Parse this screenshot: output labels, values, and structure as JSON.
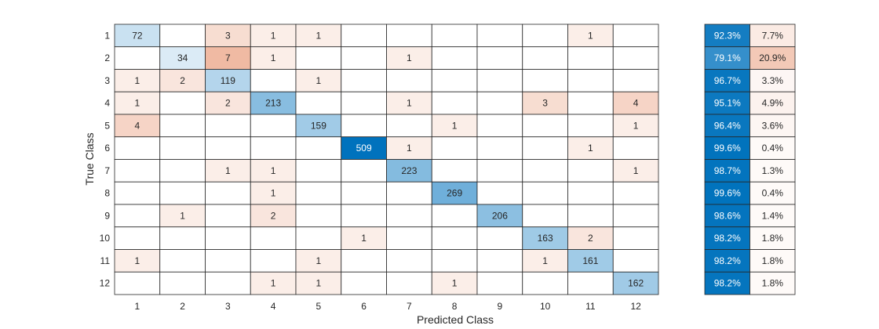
{
  "chart_data": {
    "type": "heatmap",
    "title": "",
    "xlabel": "Predicted Class",
    "ylabel": "True Class",
    "classes": [
      "1",
      "2",
      "3",
      "4",
      "5",
      "6",
      "7",
      "8",
      "9",
      "10",
      "11",
      "12"
    ],
    "matrix": [
      [
        72,
        0,
        3,
        1,
        1,
        0,
        0,
        0,
        0,
        0,
        1,
        0
      ],
      [
        0,
        34,
        7,
        1,
        0,
        0,
        1,
        0,
        0,
        0,
        0,
        0
      ],
      [
        1,
        2,
        119,
        0,
        1,
        0,
        0,
        0,
        0,
        0,
        0,
        0
      ],
      [
        1,
        0,
        2,
        213,
        0,
        0,
        1,
        0,
        0,
        3,
        0,
        4
      ],
      [
        4,
        0,
        0,
        0,
        159,
        0,
        0,
        1,
        0,
        0,
        0,
        1
      ],
      [
        0,
        0,
        0,
        0,
        0,
        509,
        1,
        0,
        0,
        0,
        1,
        0
      ],
      [
        0,
        0,
        1,
        1,
        0,
        0,
        223,
        0,
        0,
        0,
        0,
        1
      ],
      [
        0,
        0,
        0,
        1,
        0,
        0,
        0,
        269,
        0,
        0,
        0,
        0
      ],
      [
        0,
        1,
        0,
        2,
        0,
        0,
        0,
        0,
        206,
        0,
        0,
        0
      ],
      [
        0,
        0,
        0,
        0,
        0,
        1,
        0,
        0,
        0,
        163,
        2,
        0
      ],
      [
        1,
        0,
        0,
        0,
        1,
        0,
        0,
        0,
        0,
        1,
        161,
        0
      ],
      [
        0,
        0,
        0,
        1,
        1,
        0,
        0,
        1,
        0,
        0,
        0,
        162
      ]
    ],
    "row_summary": {
      "correct_pct": [
        "92.3%",
        "79.1%",
        "96.7%",
        "95.1%",
        "96.4%",
        "99.6%",
        "98.7%",
        "99.6%",
        "98.6%",
        "98.2%",
        "98.2%",
        "98.2%"
      ],
      "incorrect_pct": [
        "7.7%",
        "20.9%",
        "3.3%",
        "4.9%",
        "3.6%",
        "0.4%",
        "1.3%",
        "0.4%",
        "1.4%",
        "1.8%",
        "1.8%",
        "1.8%"
      ]
    },
    "colors": {
      "diagonal": "#0072BD",
      "off_diagonal": "#D95319",
      "grid": "#262626",
      "text_dark": "#262626",
      "text_light": "#ffffff"
    }
  }
}
